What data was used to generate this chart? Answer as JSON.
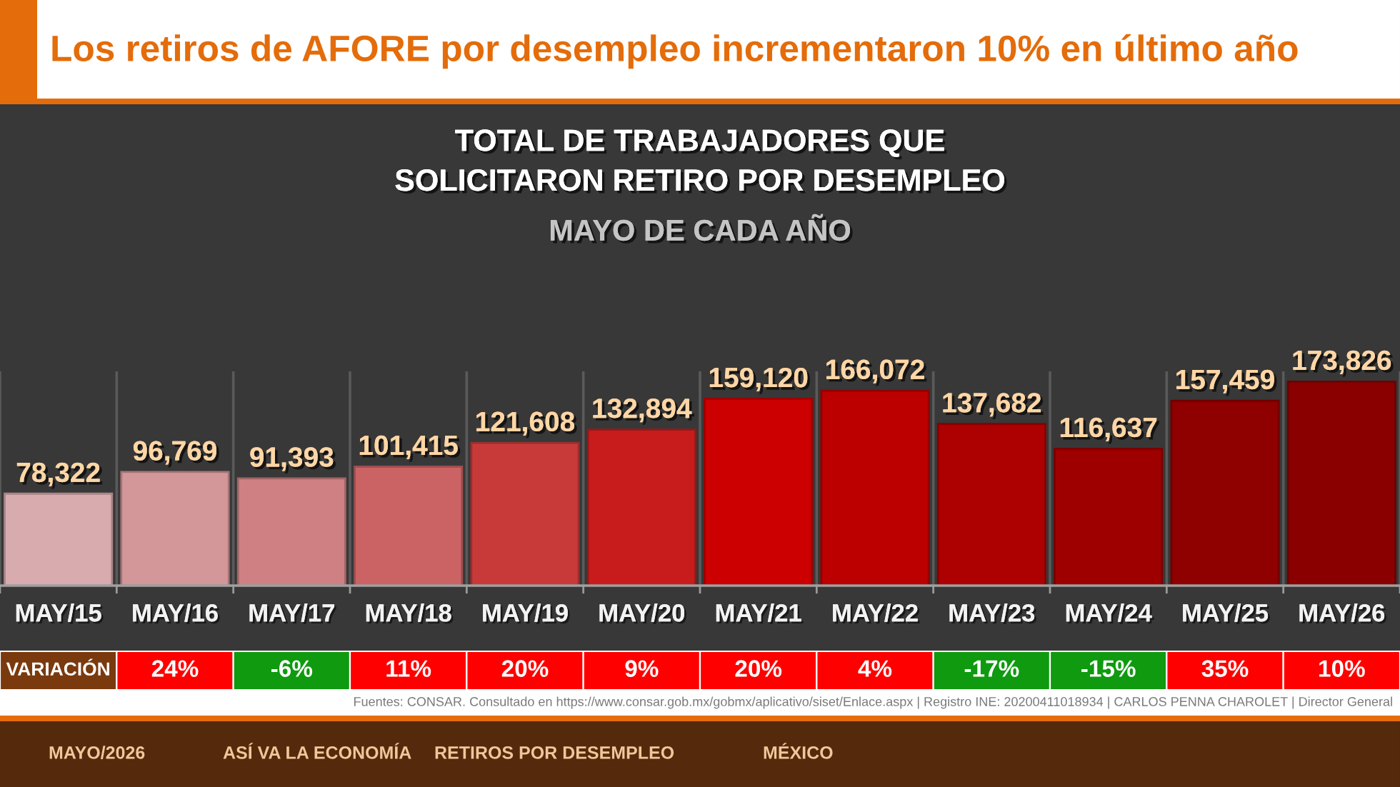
{
  "chart_data": {
    "type": "bar",
    "title": "Los retiros de AFORE por desempleo incrementaron 10% en último año",
    "subtitle": "TOTAL DE TRABAJADORES QUE\nSOLICITARON RETIRO POR DESEMPLEO",
    "categories": [
      "MAY/15",
      "MAY/16",
      "MAY/17",
      "MAY/18",
      "MAY/19",
      "MAY/20",
      "MAY/21",
      "MAY/22",
      "MAY/23",
      "MAY/24",
      "MAY/25",
      "MAY/26"
    ],
    "values": [
      78322,
      96769,
      91393,
      101415,
      121608,
      132894,
      159120,
      166072,
      137682,
      116637,
      157459,
      173826
    ],
    "value_labels": [
      "78,322",
      "96,769",
      "91,393",
      "101,415",
      "121,608",
      "132,894",
      "159,120",
      "166,072",
      "137,682",
      "116,637",
      "157,459",
      "173,826"
    ],
    "colors": [
      "#d8abae",
      "#d3979a",
      "#ce8082",
      "#cb6364",
      "#c83a3a",
      "#c81c1c",
      "#cc0000",
      "#bc0000",
      "#ad0000",
      "#9e0000",
      "#8f0000",
      "#8a0000"
    ],
    "grid": "x",
    "tick_labels": "x",
    "annotations": [
      "MAYO DE CADA AÑO",
      "VARIACIÓN",
      "24%",
      "-6%",
      "11%",
      "20%",
      "9%",
      "20%",
      "4%",
      "-17%",
      "-15%",
      "35%",
      "10%",
      "Fuentes: CONSAR. Consultado en https://www.consar.gob.mx/gobmx/aplicativo/siset/Enlace.aspx | Registro INE: 20200411018934 | CARLOS PENNA CHAROLET | Director General",
      "MAYO/2026",
      "ASÍ VA LA ECONOMÍA",
      "RETIROS POR DESEMPLEO",
      "MÉXICO"
    ]
  }
}
